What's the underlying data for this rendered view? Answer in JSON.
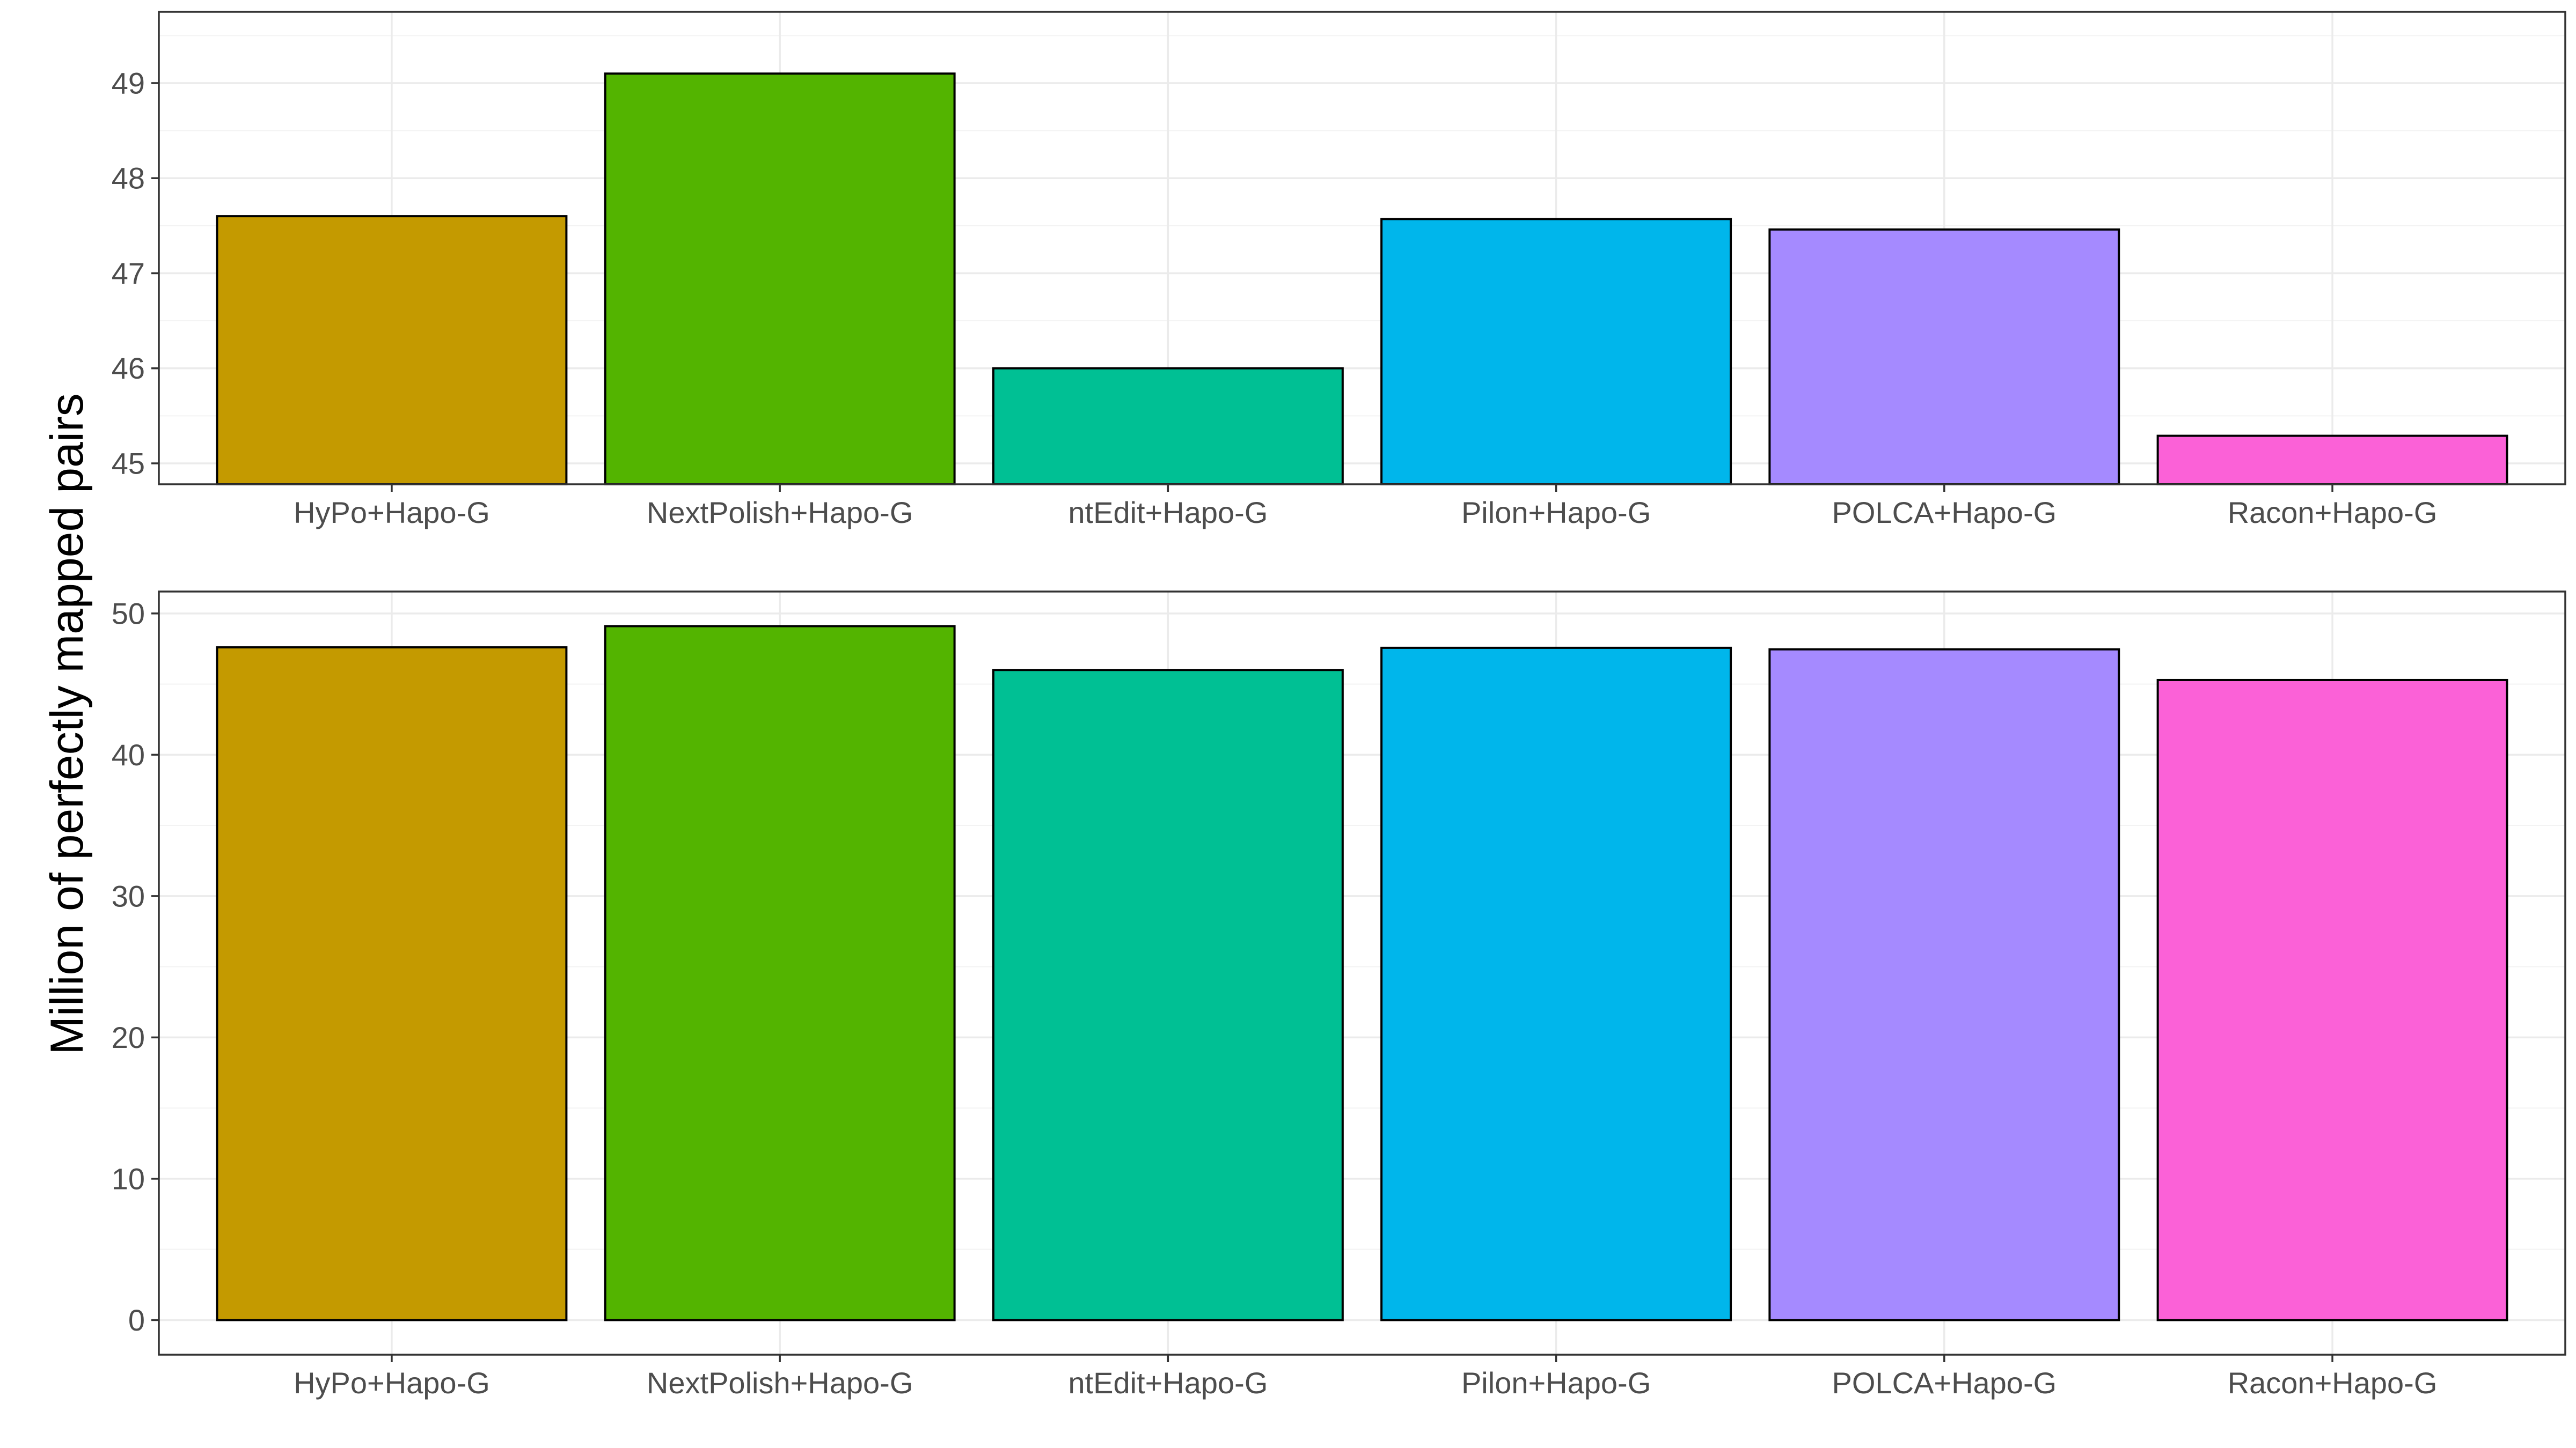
{
  "chart_data": [
    {
      "type": "bar",
      "categories": [
        "HyPo+Hapo-G",
        "NextPolish+Hapo-G",
        "ntEdit+Hapo-G",
        "Pilon+Hapo-G",
        "POLCA+Hapo-G",
        "Racon+Hapo-G"
      ],
      "values": [
        47.6,
        49.1,
        46.0,
        47.57,
        47.46,
        45.29
      ],
      "colors": [
        "#C49A00",
        "#53B400",
        "#00C094",
        "#00B6EB",
        "#A58AFF",
        "#FB61D7"
      ],
      "ylim": [
        44.78,
        49.75
      ],
      "yticks": [
        "45",
        "46",
        "47",
        "48",
        "49"
      ],
      "grid": true
    },
    {
      "type": "bar",
      "categories": [
        "HyPo+Hapo-G",
        "NextPolish+Hapo-G",
        "ntEdit+Hapo-G",
        "Pilon+Hapo-G",
        "POLCA+Hapo-G",
        "Racon+Hapo-G"
      ],
      "values": [
        47.6,
        49.1,
        46.0,
        47.57,
        47.46,
        45.29
      ],
      "colors": [
        "#C49A00",
        "#53B400",
        "#00C094",
        "#00B6EB",
        "#A58AFF",
        "#FB61D7"
      ],
      "ylim": [
        -2.45,
        51.55
      ],
      "yticks": [
        "0",
        "10",
        "20",
        "30",
        "40",
        "50"
      ],
      "grid": true
    }
  ],
  "ylabel": "Million of perfectly mapped pairs"
}
